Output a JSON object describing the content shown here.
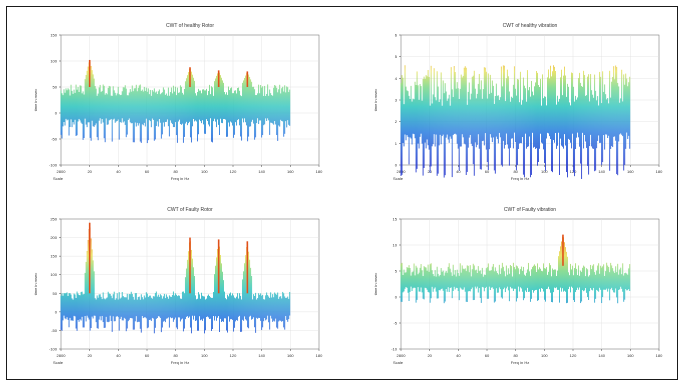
{
  "figure": {
    "colors": {
      "peak": "#e0501a",
      "mid": "#e8e05a",
      "low": "#33c6c0",
      "base": "#2a3fd0",
      "grid": "#dddddd"
    }
  },
  "chart_data": [
    {
      "id": "healthy-rotor",
      "type": "area",
      "title": "CWT of healthy Rotor",
      "xlabel": "Freq in Hz",
      "ylabel": "time in msec",
      "x_corner_label": "Scale",
      "xlim": [
        0,
        180
      ],
      "ylim": [
        -100,
        150
      ],
      "xticks": [
        "2800",
        "20",
        "40",
        "60",
        "80",
        "100",
        "120",
        "140",
        "160",
        "180"
      ],
      "yticks": [
        "150",
        "100",
        "50",
        "0",
        "-50",
        "-100"
      ],
      "grid": true,
      "baseline": 50,
      "band_low": -10,
      "peaks": [
        {
          "x": 20,
          "y": 102
        },
        {
          "x": 90,
          "y": 88
        },
        {
          "x": 110,
          "y": 82
        },
        {
          "x": 130,
          "y": 80
        }
      ]
    },
    {
      "id": "healthy-vibration",
      "type": "area",
      "title": "CWT of healthy vibration",
      "xlabel": "Freq in Hz",
      "ylabel": "time in msec",
      "x_corner_label": "Scale",
      "xlim": [
        0,
        180
      ],
      "ylim": [
        0,
        6
      ],
      "xticks": [
        "2800",
        "20",
        "40",
        "60",
        "80",
        "100",
        "120",
        "140",
        "160",
        "180"
      ],
      "yticks": [
        "6",
        "5",
        "4",
        "3",
        "2",
        "1",
        "0"
      ],
      "grid": true,
      "baseline": 4.2,
      "band_low": 1.5,
      "peaks": []
    },
    {
      "id": "faulty-rotor",
      "type": "area",
      "title": "CWT of Faulty Rotor",
      "xlabel": "Freq in Hz",
      "ylabel": "time in msec",
      "x_corner_label": "Scale",
      "xlim": [
        0,
        180
      ],
      "ylim": [
        -100,
        250
      ],
      "xticks": [
        "2800",
        "20",
        "40",
        "60",
        "80",
        "100",
        "120",
        "140",
        "160",
        "180"
      ],
      "yticks": [
        "250",
        "200",
        "150",
        "100",
        "50",
        "0",
        "-50",
        "-100"
      ],
      "grid": true,
      "baseline": 50,
      "band_low": -10,
      "peaks": [
        {
          "x": 20,
          "y": 240
        },
        {
          "x": 90,
          "y": 200
        },
        {
          "x": 110,
          "y": 195
        },
        {
          "x": 130,
          "y": 190
        }
      ]
    },
    {
      "id": "faulty-vibration",
      "type": "area",
      "title": "CWT of Faulty vibration",
      "xlabel": "Freq in Hz",
      "ylabel": "time in msec",
      "x_corner_label": "Scale",
      "xlim": [
        0,
        180
      ],
      "ylim": [
        -10,
        15
      ],
      "xticks": [
        "2800",
        "20",
        "40",
        "60",
        "80",
        "100",
        "120",
        "140",
        "160",
        "180"
      ],
      "yticks": [
        "15",
        "10",
        "5",
        "0",
        "-5",
        "-10"
      ],
      "grid": true,
      "baseline": 6,
      "band_low": 2,
      "peaks": [
        {
          "x": 113,
          "y": 12
        }
      ]
    }
  ]
}
